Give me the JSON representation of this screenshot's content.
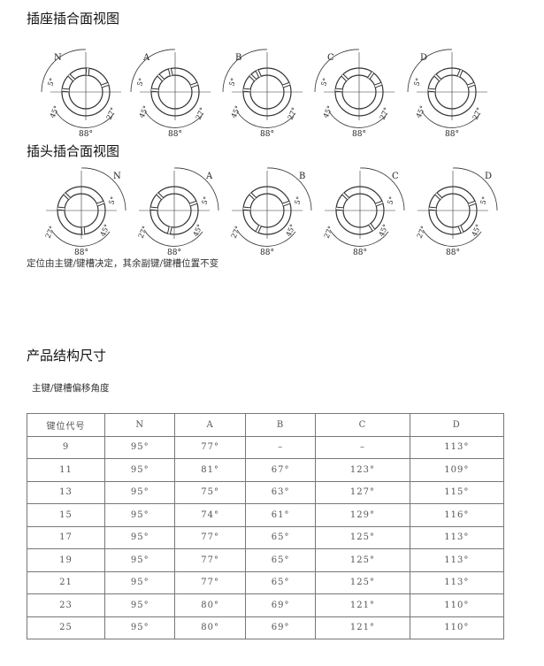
{
  "socket_title": "插座插合面视图",
  "plug_title": "插头插合面视图",
  "note": "定位由主键/键槽决定，其余副键/键槽位置不变",
  "section_title": "产品结构尺寸",
  "table_caption": "主键/键槽偏移角度",
  "diagram_keys": [
    "N",
    "A",
    "B",
    "C",
    "D"
  ],
  "diagram_angles": {
    "a5": "5°",
    "a45": "45°",
    "a88": "88°",
    "a27": "27°"
  },
  "table": {
    "headers": [
      "键位代号",
      "N",
      "A",
      "B",
      "C",
      "D"
    ],
    "rows": [
      [
        "9",
        "95°",
        "77°",
        "–",
        "–",
        "113°"
      ],
      [
        "11",
        "95°",
        "81°",
        "67°",
        "123°",
        "109°"
      ],
      [
        "13",
        "95°",
        "75°",
        "63°",
        "127°",
        "115°"
      ],
      [
        "15",
        "95°",
        "74°",
        "61°",
        "129°",
        "116°"
      ],
      [
        "17",
        "95°",
        "77°",
        "65°",
        "125°",
        "113°"
      ],
      [
        "19",
        "95°",
        "77°",
        "65°",
        "125°",
        "113°"
      ],
      [
        "21",
        "95°",
        "77°",
        "65°",
        "125°",
        "113°"
      ],
      [
        "23",
        "95°",
        "80°",
        "69°",
        "121°",
        "110°"
      ],
      [
        "25",
        "95°",
        "80°",
        "69°",
        "121°",
        "110°"
      ]
    ]
  }
}
